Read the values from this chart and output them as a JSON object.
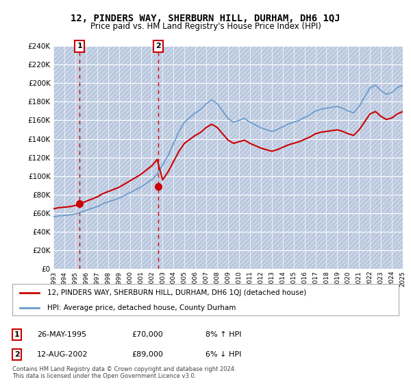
{
  "title": "12, PINDERS WAY, SHERBURN HILL, DURHAM, DH6 1QJ",
  "subtitle": "Price paid vs. HM Land Registry's House Price Index (HPI)",
  "legend_label_red": "12, PINDERS WAY, SHERBURN HILL, DURHAM, DH6 1QJ (detached house)",
  "legend_label_blue": "HPI: Average price, detached house, County Durham",
  "transaction1_label": "1",
  "transaction1_date": "26-MAY-1995",
  "transaction1_price": "£70,000",
  "transaction1_hpi": "8% ↑ HPI",
  "transaction1_year": 1995.4,
  "transaction1_value": 70000,
  "transaction2_label": "2",
  "transaction2_date": "12-AUG-2002",
  "transaction2_price": "£89,000",
  "transaction2_hpi": "6% ↓ HPI",
  "transaction2_year": 2002.6,
  "transaction2_value": 89000,
  "ylim": [
    0,
    240000
  ],
  "ylabel_ticks": [
    0,
    20000,
    40000,
    60000,
    80000,
    100000,
    120000,
    140000,
    160000,
    180000,
    200000,
    220000,
    240000
  ],
  "background_color": "#ffffff",
  "plot_bg_color": "#e8eef7",
  "hatch_color": "#c8d4e8",
  "grid_color": "#ffffff",
  "red_line_color": "#cc0000",
  "blue_line_color": "#6699cc",
  "footnote": "Contains HM Land Registry data © Crown copyright and database right 2024.\nThis data is licensed under the Open Government Licence v3.0."
}
